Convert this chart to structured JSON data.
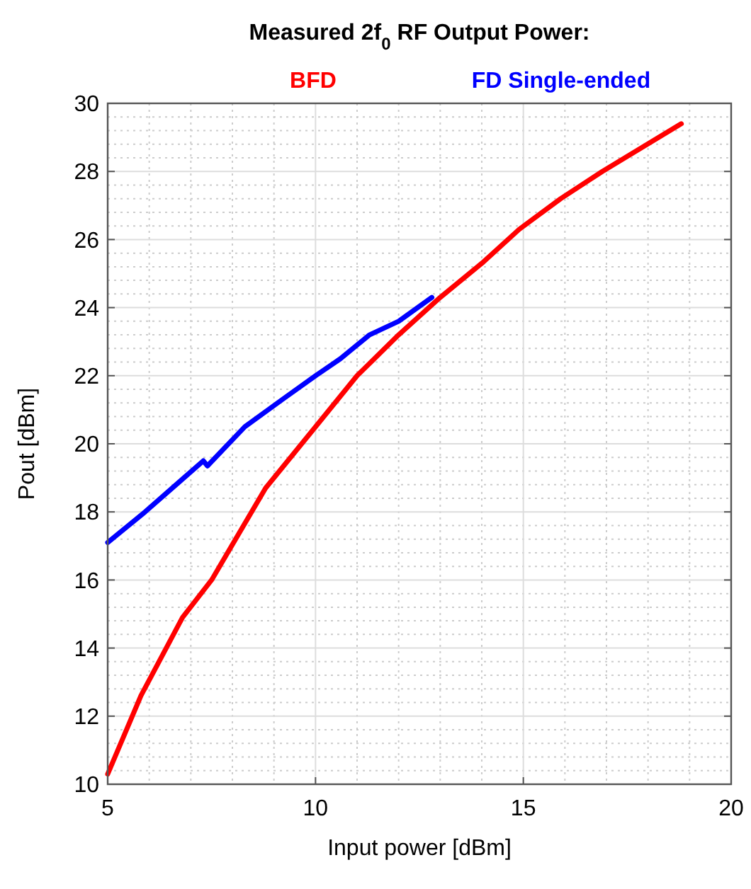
{
  "chart_data": {
    "type": "line",
    "title": "Measured 2f$_{0}$ RF Output Power:",
    "xlabel": "Input power [dBm]",
    "ylabel": "Pout [dBm]",
    "xlim": [
      5,
      20
    ],
    "xticks": [
      5,
      10,
      15,
      20
    ],
    "ylim": [
      10,
      30
    ],
    "yticks": [
      10,
      12,
      14,
      16,
      18,
      20,
      22,
      24,
      26,
      28,
      30
    ],
    "grid": true,
    "legend": "top",
    "marker": "none",
    "line_style": "solid",
    "series": [
      {
        "name": "BFD",
        "color": "#ff0000",
        "x": [
          5,
          5.8,
          6.8,
          7.5,
          8.8,
          10,
          11,
          12,
          13,
          14,
          14.9,
          15.9,
          16.9,
          18.8
        ],
        "values": [
          10.3,
          12.6,
          14.9,
          16.0,
          18.7,
          20.5,
          22.0,
          23.2,
          24.3,
          25.3,
          26.3,
          27.2,
          28.0,
          29.4
        ]
      },
      {
        "name": "FD Single-ended",
        "color": "#0000ff",
        "x": [
          5,
          5.9,
          7.3,
          7.4,
          8.3,
          9.2,
          10,
          10.6,
          11.3,
          12,
          12.8
        ],
        "values": [
          17.1,
          18.0,
          19.5,
          19.35,
          20.5,
          21.3,
          22.0,
          22.5,
          23.2,
          23.6,
          24.3
        ]
      }
    ]
  }
}
